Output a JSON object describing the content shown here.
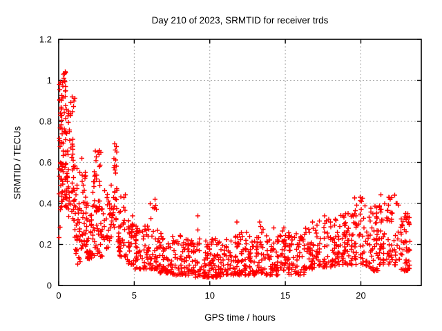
{
  "chart_data": {
    "type": "scatter",
    "title": "Day 210 of 2023, SRMTID for receiver trds",
    "xlabel": "GPS time / hours",
    "ylabel": "SRMTID / TECUs",
    "xlim": [
      0,
      24
    ],
    "ylim": [
      0,
      1.2
    ],
    "xticks": [
      0,
      5,
      10,
      15,
      20
    ],
    "xtick_labels": [
      "0",
      "5",
      "10",
      "15",
      "20"
    ],
    "yticks": [
      0,
      0.2,
      0.4,
      0.6,
      0.8,
      1,
      1.2
    ],
    "ytick_labels": [
      "0",
      "0.2",
      "0.4",
      "0.6",
      "0.8",
      "1",
      "1.2"
    ],
    "grid": true,
    "legend_position": "none",
    "marker": {
      "shape": "plus",
      "color": "#ff0000",
      "size": 7,
      "stroke_width": 1.4
    },
    "colors": {
      "grid": "#a8a8a8",
      "border": "#000000",
      "background": "#ffffff",
      "text": "#000000"
    },
    "series": [
      {
        "name": "SRMTID",
        "seed": 20230729,
        "key_points": [
          [
            0.3,
            1.03
          ],
          [
            0.35,
            1.01
          ],
          [
            0.25,
            0.99
          ],
          [
            0.05,
            0.98
          ],
          [
            0.45,
            0.97
          ],
          [
            0.9,
            0.92
          ],
          [
            1.0,
            0.9
          ],
          [
            1.2,
            0.57
          ],
          [
            1.52,
            0.62
          ],
          [
            2.6,
            0.65
          ],
          [
            3.7,
            0.69
          ],
          [
            3.74,
            0.66
          ],
          [
            6.38,
            0.42
          ],
          [
            6.42,
            0.39
          ],
          [
            9.2,
            0.34
          ],
          [
            9.22,
            0.27
          ],
          [
            11.8,
            0.31
          ],
          [
            13.3,
            0.31
          ],
          [
            14.25,
            0.28
          ],
          [
            14.9,
            0.28
          ],
          [
            16.8,
            0.31
          ],
          [
            17.6,
            0.34
          ],
          [
            19.0,
            0.35
          ],
          [
            19.95,
            0.43
          ],
          [
            20.05,
            0.41
          ],
          [
            21.85,
            0.43
          ],
          [
            21.95,
            0.42
          ],
          [
            22.4,
            0.4
          ],
          [
            23.1,
            0.35
          ],
          [
            23.2,
            0.3
          ]
        ],
        "density_bands": [
          [
            0.0,
            0.15,
            0.2,
            1.0,
            16,
            1.0
          ],
          [
            0.1,
            0.6,
            0.38,
            0.6,
            42,
            1.1
          ],
          [
            0.12,
            0.55,
            0.6,
            0.95,
            30,
            1.0
          ],
          [
            0.25,
            0.5,
            0.95,
            1.05,
            7,
            1.0
          ],
          [
            0.55,
            1.1,
            0.45,
            0.93,
            38,
            1.2
          ],
          [
            0.55,
            1.1,
            0.3,
            0.45,
            14,
            1.0
          ],
          [
            1.05,
            1.45,
            0.22,
            0.58,
            26,
            1.3
          ],
          [
            1.1,
            1.5,
            0.09,
            0.2,
            9,
            1.0
          ],
          [
            1.45,
            1.85,
            0.18,
            0.56,
            28,
            1.5
          ],
          [
            1.8,
            2.2,
            0.13,
            0.42,
            40,
            1.6
          ],
          [
            2.2,
            2.9,
            0.14,
            0.5,
            48,
            1.7
          ],
          [
            2.25,
            2.85,
            0.5,
            0.66,
            16,
            1.0
          ],
          [
            2.9,
            3.55,
            0.18,
            0.52,
            34,
            1.5
          ],
          [
            3.55,
            3.9,
            0.28,
            0.69,
            26,
            1.2
          ],
          [
            3.9,
            4.5,
            0.14,
            0.46,
            40,
            1.7
          ],
          [
            4.5,
            5.0,
            0.1,
            0.38,
            34,
            1.8
          ],
          [
            5.0,
            6.0,
            0.08,
            0.3,
            62,
            1.9
          ],
          [
            6.0,
            6.6,
            0.08,
            0.42,
            40,
            2.1
          ],
          [
            6.6,
            7.5,
            0.06,
            0.28,
            56,
            1.9
          ],
          [
            7.5,
            9.0,
            0.05,
            0.25,
            88,
            1.8
          ],
          [
            9.0,
            11.3,
            0.04,
            0.23,
            132,
            1.7
          ],
          [
            11.3,
            12.0,
            0.05,
            0.3,
            44,
            2.0
          ],
          [
            12.0,
            13.0,
            0.05,
            0.26,
            58,
            1.8
          ],
          [
            13.0,
            13.6,
            0.06,
            0.29,
            34,
            1.9
          ],
          [
            13.6,
            14.6,
            0.05,
            0.25,
            58,
            1.7
          ],
          [
            14.6,
            15.1,
            0.07,
            0.28,
            30,
            1.8
          ],
          [
            15.1,
            16.3,
            0.05,
            0.26,
            68,
            1.7
          ],
          [
            16.3,
            17.2,
            0.08,
            0.3,
            50,
            1.6
          ],
          [
            17.2,
            18.4,
            0.09,
            0.33,
            62,
            1.6
          ],
          [
            18.4,
            19.3,
            0.1,
            0.36,
            54,
            1.5
          ],
          [
            19.3,
            20.3,
            0.1,
            0.43,
            56,
            1.5
          ],
          [
            20.3,
            21.2,
            0.07,
            0.4,
            58,
            1.5
          ],
          [
            21.2,
            22.6,
            0.1,
            0.45,
            80,
            1.4
          ],
          [
            22.6,
            23.3,
            0.07,
            0.36,
            52,
            1.4
          ]
        ]
      }
    ]
  }
}
